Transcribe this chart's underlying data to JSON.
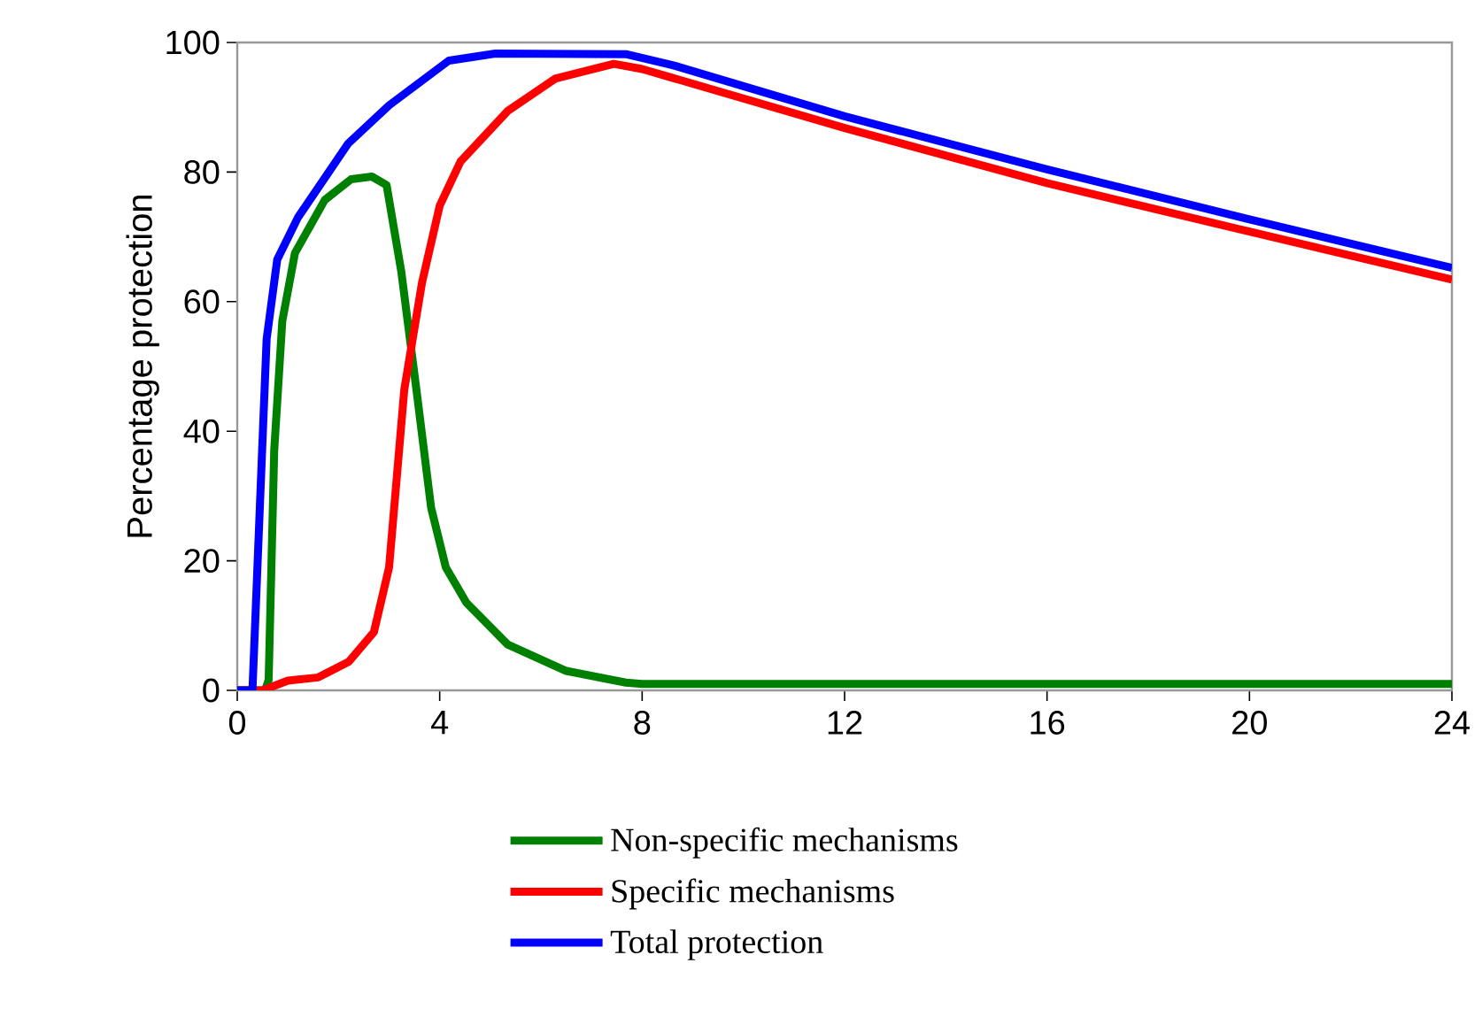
{
  "chart_data": {
    "type": "line",
    "ylabel": "Percentage protection",
    "xlim": [
      0,
      24
    ],
    "ylim": [
      0,
      100
    ],
    "xticks": [
      0,
      4,
      8,
      12,
      16,
      20,
      24
    ],
    "yticks": [
      0,
      20,
      40,
      60,
      80,
      100
    ],
    "legend": "bottom",
    "marker": "none",
    "line_style": "solid",
    "grid": false,
    "series": [
      {
        "name": "Non-specific mechanisms",
        "color": "#008000",
        "x": [
          0,
          0.55,
          0.62,
          0.73,
          0.89,
          1.14,
          1.73,
          2.25,
          2.66,
          2.95,
          3.24,
          3.54,
          3.83,
          4.12,
          4.53,
          5.34,
          6.5,
          7.68,
          8,
          12,
          16,
          20,
          24
        ],
        "values": [
          0,
          0,
          1.6,
          37,
          57,
          67.5,
          75.7,
          78.9,
          79.3,
          78,
          64.7,
          46.4,
          28.2,
          19,
          13.5,
          7.1,
          3,
          1.2,
          1,
          1,
          1,
          1,
          1
        ]
      },
      {
        "name": "Specific mechanisms",
        "color": "#ff0000",
        "x": [
          0,
          0.5,
          1,
          1.6,
          2.2,
          2.7,
          3,
          3.3,
          3.65,
          4,
          4.41,
          5.34,
          6.28,
          7.44,
          8,
          12,
          16,
          20,
          24
        ],
        "values": [
          0,
          0,
          1.5,
          2,
          4.4,
          9,
          19,
          46.4,
          62.9,
          74.8,
          81.6,
          89.4,
          94.4,
          96.7,
          95.9,
          86.8,
          78.3,
          70.8,
          63.4
        ]
      },
      {
        "name": "Total protection",
        "color": "#0000ff",
        "x": [
          0,
          0.3,
          0.58,
          0.79,
          1.2,
          2.19,
          3,
          4.18,
          5.1,
          7.68,
          8.6,
          12,
          16,
          20,
          24
        ],
        "values": [
          0,
          0,
          54.2,
          66.5,
          73,
          84.4,
          90.3,
          97.2,
          98.3,
          98.2,
          96.5,
          88.6,
          80.4,
          72.7,
          65.2
        ]
      }
    ]
  }
}
